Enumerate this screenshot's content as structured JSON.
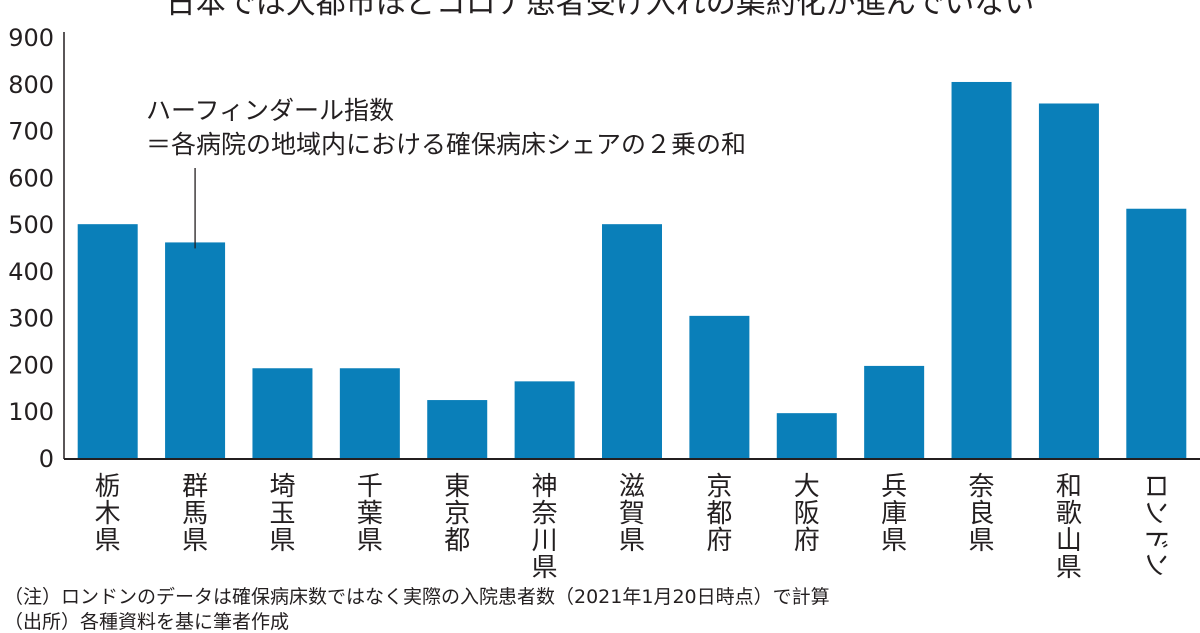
{
  "chart_data": {
    "type": "bar",
    "title": "日本では大都市ほどコロナ患者受け入れの集約化が進んでいない",
    "categories": [
      "栃木県",
      "群馬県",
      "埼玉県",
      "千葉県",
      "東京都",
      "神奈川県",
      "滋賀県",
      "京都府",
      "大阪府",
      "兵庫県",
      "奈良県",
      "和歌山県",
      "ロンドン"
    ],
    "values": [
      502,
      463,
      194,
      194,
      126,
      166,
      502,
      306,
      98,
      199,
      806,
      760,
      535
    ],
    "yticks": [
      "0",
      "100",
      "200",
      "300",
      "400",
      "500",
      "600",
      "700",
      "800",
      "900"
    ],
    "ylim": [
      0,
      900
    ],
    "xlabel": "",
    "ylabel": "",
    "grid": false,
    "bar_color": "#0a7fb9",
    "annotation": {
      "line1": "ハーフィンダール指数",
      "line2": "＝各病院の地域内における確保病床シェアの２乗の和",
      "target_category": "群馬県"
    }
  },
  "notes": {
    "note": "（注）ロンドンのデータは確保病床数ではなく実際の入院患者数（2021年1月20日時点）で計算",
    "source": "（出所）各種資料を基に筆者作成"
  }
}
